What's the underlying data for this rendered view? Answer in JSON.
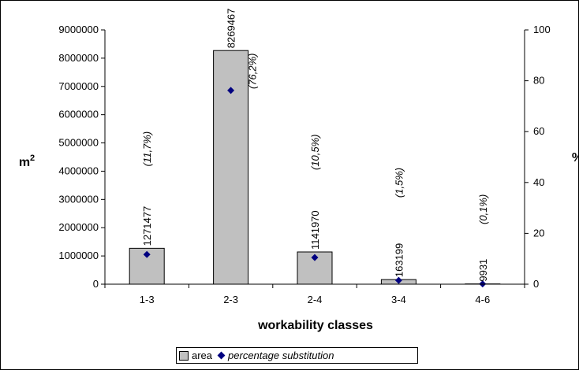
{
  "chart_data": {
    "type": "bar",
    "xlabel": "workability classes",
    "ylabel": "m²",
    "ylabel_right": "%",
    "categories": [
      "1-3",
      "2-3",
      "2-4",
      "3-4",
      "4-6"
    ],
    "series": [
      {
        "name": "area",
        "axis": "left",
        "type": "bar",
        "values": [
          1271477,
          8269467,
          1141970,
          163199,
          9931
        ],
        "labels": [
          "1271477",
          "8269467",
          "1141970",
          "163199",
          "9931"
        ],
        "color": "#c0c0c0"
      },
      {
        "name": "percentage substitution",
        "axis": "right",
        "type": "scatter",
        "values": [
          11.7,
          76.2,
          10.5,
          1.5,
          0.1
        ],
        "labels": [
          "(11,7%)",
          "(76,2%)",
          "(10,5%)",
          "(1,5%)",
          "(0,1%)"
        ],
        "color": "#000080"
      }
    ],
    "y_left": {
      "ylim": [
        0,
        9000000
      ],
      "ticks": [
        0,
        1000000,
        2000000,
        3000000,
        4000000,
        5000000,
        6000000,
        7000000,
        8000000,
        9000000
      ],
      "tick_labels": [
        "0",
        "1000000",
        "2000000",
        "3000000",
        "4000000",
        "5000000",
        "6000000",
        "7000000",
        "8000000",
        "9000000"
      ]
    },
    "y_right": {
      "ylim": [
        0,
        100
      ],
      "ticks": [
        0,
        20,
        40,
        60,
        80,
        100
      ],
      "tick_labels": [
        "0",
        "20",
        "40",
        "60",
        "80",
        "100"
      ]
    },
    "grid": false,
    "legend": {
      "position": "bottom",
      "entries": [
        {
          "label": "area"
        },
        {
          "label": "percentage substitution"
        }
      ]
    }
  }
}
